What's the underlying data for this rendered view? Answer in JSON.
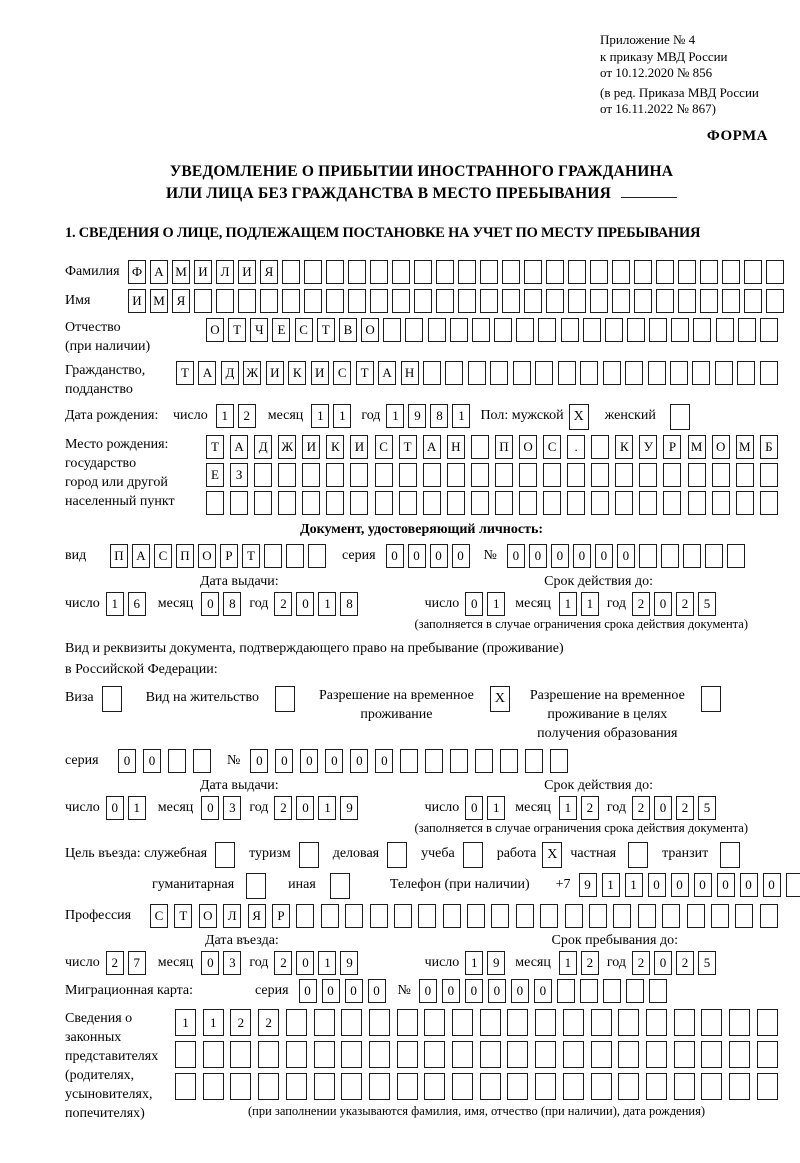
{
  "header": {
    "line1": "Приложение № 4",
    "line2": "к приказу МВД России",
    "line3": "от 10.12.2020 № 856",
    "line4": "(в ред. Приказа МВД России",
    "line5": "от 16.11.2022 № 867)",
    "forma": "ФОРМА"
  },
  "title": {
    "line1": "УВЕДОМЛЕНИЕ О ПРИБЫТИИ ИНОСТРАННОГО ГРАЖДАНИНА",
    "line2": "ИЛИ ЛИЦА БЕЗ ГРАЖДАНСТВА В МЕСТО ПРЕБЫВАНИЯ"
  },
  "section1": {
    "heading": "1. СВЕДЕНИЯ О ЛИЦЕ, ПОДЛЕЖАЩЕМ ПОСТАНОВКЕ НА УЧЕТ ПО МЕСТУ ПРЕБЫВАНИЯ"
  },
  "headings": {
    "identity_doc": "Документ, удостоверяющий личность:"
  },
  "notes": {
    "limit_note": "(заполняется в случае ограничения срока действия документа)",
    "fill_note": "(при заполнении указываются фамилия, имя, отчество (при наличии), дата рождения)"
  },
  "paragraphs": {
    "permit1": "Вид и реквизиты документа, подтверждающего право на пребывание (проживание)",
    "permit2": "в Российской Федерации:"
  },
  "rows": {
    "fam": [
      {
        "label": "Фамилия",
        "name": "surname-label",
        "w": 63
      },
      {
        "boxes": 30,
        "v": "ФАМИЛИЯ",
        "grow": true,
        "name": "surname-boxes"
      }
    ],
    "imya": [
      {
        "label": "Имя",
        "name": "given-name-label",
        "w": 63
      },
      {
        "boxes": 30,
        "v": "ИМЯ",
        "grow": true,
        "name": "given-name-boxes"
      }
    ],
    "otch": [
      {
        "stack": [
          "Отчество",
          "(при наличии)"
        ],
        "left": true,
        "w": 141,
        "name": "patronymic-label"
      },
      {
        "boxes": 26,
        "v": "ОТЧЕСТВО",
        "grow": true,
        "name": "patronymic-boxes"
      }
    ],
    "grazh": [
      {
        "stack": [
          "Гражданство,",
          "подданство"
        ],
        "left": true,
        "w": 111,
        "name": "citizenship-label"
      },
      {
        "boxes": 27,
        "v": "ТАДЖИКИСТАН",
        "grow": true,
        "name": "citizenship-boxes"
      }
    ],
    "dob": [
      {
        "label": "Дата рождения:",
        "name": "dob-label",
        "w": 104
      },
      {
        "label": "число",
        "name": "date-part-label",
        "ml": 4
      },
      {
        "boxes": 2,
        "v": "12",
        "ml": 8,
        "name": "dob-day-boxes"
      },
      {
        "label": "месяц",
        "name": "date-part-label",
        "ml": 12
      },
      {
        "boxes": 2,
        "v": "11",
        "ml": 8,
        "name": "dob-month-boxes"
      },
      {
        "label": "год",
        "name": "date-part-label",
        "ml": 10
      },
      {
        "boxes": 4,
        "v": "1981",
        "ml": 6,
        "name": "dob-year-boxes"
      },
      {
        "label": "Пол: мужской",
        "name": "gender-male-label",
        "ml": 10
      },
      {
        "boxes": 1,
        "v": "X",
        "cb": true,
        "ml": 5,
        "name": "gender-male-checkbox"
      },
      {
        "label": "женский",
        "name": "gender-female-label",
        "ml": 16
      },
      {
        "boxes": 1,
        "v": "",
        "cb": true,
        "ml": 14,
        "name": "gender-female-checkbox"
      }
    ],
    "birth_label": [
      {
        "stack": [
          "Место рождения:",
          "государство",
          "город или другой",
          "населенный пункт"
        ],
        "left": true,
        "w": 141,
        "name": "birthplace-label"
      }
    ],
    "birth1": [
      {
        "boxes": 24,
        "v": "ТАДЖИКИСТАН ПОС. КУРМОМБ",
        "grow": true,
        "name": "birthplace-line1-boxes"
      }
    ],
    "birth2": [
      {
        "boxes": 24,
        "v": "ЕЗ",
        "grow": true,
        "name": "birthplace-line2-boxes"
      }
    ],
    "birth3": [
      {
        "boxes": 24,
        "v": "",
        "grow": true,
        "name": "birthplace-line3-boxes"
      }
    ],
    "vid": [
      {
        "label": "вид",
        "name": "doc-type-label",
        "w": 45
      },
      {
        "boxes": 10,
        "v": "ПАСПОРТ",
        "name": "doc-type-boxes"
      },
      {
        "label": "серия",
        "name": "doc-series-label",
        "ml": 16
      },
      {
        "boxes": 4,
        "v": "0000",
        "ml": 10,
        "name": "doc-series-boxes"
      },
      {
        "label": "№",
        "name": "doc-number-label",
        "ml": 14
      },
      {
        "boxes": 11,
        "v": "000000",
        "ml": 10,
        "name": "doc-number-boxes"
      }
    ],
    "dates1_head": [
      {
        "label": "Дата выдачи:",
        "name": "issue-date-header",
        "ml": 135
      },
      {
        "flex": true
      },
      {
        "label": "Срок действия до:",
        "name": "validity-date-header",
        "mr": 125
      }
    ],
    "dates1": [
      {
        "label": "число",
        "name": "date-part-label"
      },
      {
        "boxes": 2,
        "v": "16",
        "ml": 6,
        "name": "doc-issue-day-boxes"
      },
      {
        "label": "месяц",
        "name": "date-part-label",
        "ml": 12
      },
      {
        "boxes": 2,
        "v": "08",
        "ml": 8,
        "name": "doc-issue-month-boxes"
      },
      {
        "label": "год",
        "name": "date-part-label",
        "ml": 8
      },
      {
        "boxes": 4,
        "v": "2018",
        "ml": 6,
        "name": "doc-issue-year-boxes"
      },
      {
        "flex": true
      },
      {
        "label": "число",
        "name": "date-part-label"
      },
      {
        "boxes": 2,
        "v": "01",
        "ml": 6,
        "name": "doc-valid-day-boxes"
      },
      {
        "label": "месяц",
        "name": "date-part-label",
        "ml": 10
      },
      {
        "boxes": 2,
        "v": "11",
        "ml": 8,
        "name": "doc-valid-month-boxes"
      },
      {
        "label": "год",
        "name": "date-part-label",
        "ml": 8
      },
      {
        "boxes": 4,
        "v": "2025",
        "ml": 6,
        "name": "doc-valid-year-boxes"
      },
      {
        "sp": 62
      }
    ],
    "perm": [
      {
        "label": "Виза",
        "name": "visa-label"
      },
      {
        "boxes": 1,
        "v": "",
        "cb": true,
        "ml": 8,
        "name": "visa-checkbox"
      },
      {
        "label": "Вид на жительство",
        "name": "residence-permit-label",
        "ml": 24
      },
      {
        "boxes": 1,
        "v": "",
        "cb": true,
        "ml": 16,
        "name": "residence-permit-checkbox"
      },
      {
        "stack": [
          "Разрешение на временное",
          "проживание"
        ],
        "name": "temp-residence-label",
        "ml": 24
      },
      {
        "boxes": 1,
        "v": "X",
        "cb": true,
        "ml": 16,
        "name": "temp-residence-checkbox"
      },
      {
        "stack": [
          "Разрешение на временное",
          "проживание в целях",
          "получения образования"
        ],
        "name": "temp-residence-edu-label",
        "ml": 20
      },
      {
        "boxes": 1,
        "v": "",
        "cb": true,
        "ml": 16,
        "name": "temp-residence-edu-checkbox"
      }
    ],
    "ser2": [
      {
        "label": "серия",
        "name": "permit-series-label",
        "w": 45
      },
      {
        "boxes": 4,
        "v": "00",
        "ml": 8,
        "gap": 7,
        "name": "permit-series-boxes"
      },
      {
        "label": "№",
        "name": "permit-number-label",
        "ml": 16
      },
      {
        "boxes": 13,
        "v": "000000",
        "ml": 10,
        "gap": 7,
        "name": "permit-number-boxes"
      }
    ],
    "dates2_head": [
      {
        "label": "Дата выдачи:",
        "name": "permit-issue-date-header",
        "ml": 135
      },
      {
        "flex": true
      },
      {
        "label": "Срок действия до:",
        "name": "permit-validity-date-header",
        "mr": 125
      }
    ],
    "dates2": [
      {
        "label": "число",
        "name": "date-part-label"
      },
      {
        "boxes": 2,
        "v": "01",
        "ml": 6,
        "name": "permit-issue-day-boxes"
      },
      {
        "label": "месяц",
        "name": "date-part-label",
        "ml": 12
      },
      {
        "boxes": 2,
        "v": "03",
        "ml": 8,
        "name": "permit-issue-month-boxes"
      },
      {
        "label": "год",
        "name": "date-part-label",
        "ml": 8
      },
      {
        "boxes": 4,
        "v": "2019",
        "ml": 6,
        "name": "permit-issue-year-boxes"
      },
      {
        "flex": true
      },
      {
        "label": "число",
        "name": "date-part-label"
      },
      {
        "boxes": 2,
        "v": "01",
        "ml": 6,
        "name": "permit-valid-day-boxes"
      },
      {
        "label": "месяц",
        "name": "date-part-label",
        "ml": 10
      },
      {
        "boxes": 2,
        "v": "12",
        "ml": 8,
        "name": "permit-valid-month-boxes"
      },
      {
        "label": "год",
        "name": "date-part-label",
        "ml": 8
      },
      {
        "boxes": 4,
        "v": "2025",
        "ml": 6,
        "name": "permit-valid-year-boxes"
      },
      {
        "sp": 62
      }
    ],
    "purpose": [
      {
        "label": "Цель въезда: служебная",
        "name": "purpose-official-label"
      },
      {
        "boxes": 1,
        "v": "",
        "cb": true,
        "ml": 8,
        "name": "purpose-official-checkbox"
      },
      {
        "label": "туризм",
        "name": "purpose-tourism-label",
        "ml": 14
      },
      {
        "boxes": 1,
        "v": "",
        "cb": true,
        "ml": 8,
        "name": "purpose-tourism-checkbox"
      },
      {
        "label": "деловая",
        "name": "purpose-business-label",
        "ml": 14
      },
      {
        "boxes": 1,
        "v": "",
        "cb": true,
        "ml": 8,
        "name": "purpose-business-checkbox"
      },
      {
        "label": "учеба",
        "name": "purpose-study-label",
        "ml": 14
      },
      {
        "boxes": 1,
        "v": "",
        "cb": true,
        "ml": 8,
        "name": "purpose-study-checkbox"
      },
      {
        "label": "работа",
        "name": "purpose-work-label",
        "ml": 14
      },
      {
        "boxes": 1,
        "v": "X",
        "cb": true,
        "ml": 6,
        "name": "purpose-work-checkbox"
      },
      {
        "label": "частная",
        "name": "purpose-private-label",
        "ml": 8
      },
      {
        "boxes": 1,
        "v": "",
        "cb": true,
        "ml": 12,
        "name": "purpose-private-checkbox"
      },
      {
        "label": "транзит",
        "name": "purpose-transit-label",
        "ml": 14
      },
      {
        "boxes": 1,
        "v": "",
        "cb": true,
        "ml": 12,
        "name": "purpose-transit-checkbox"
      }
    ],
    "purpose2": [
      {
        "label": "гуманитарная",
        "name": "purpose-humanitarian-label",
        "ml": 87
      },
      {
        "boxes": 1,
        "v": "",
        "cb": true,
        "ml": 12,
        "name": "purpose-humanitarian-checkbox"
      },
      {
        "label": "иная",
        "name": "purpose-other-label",
        "ml": 22
      },
      {
        "boxes": 1,
        "v": "",
        "cb": true,
        "ml": 14,
        "name": "purpose-other-checkbox"
      },
      {
        "label": "Телефон (при наличии)",
        "name": "phone-label",
        "ml": 40
      },
      {
        "label": "+7",
        "name": "phone-prefix",
        "ml": 26
      },
      {
        "boxes": 10,
        "v": "911000000",
        "ml": 8,
        "gap": 5,
        "name": "phone-boxes"
      }
    ],
    "prof": [
      {
        "label": "Профессия",
        "name": "profession-label",
        "w": 85
      },
      {
        "boxes": 26,
        "v": "СТОЛЯР",
        "grow": true,
        "name": "profession-boxes"
      }
    ],
    "dates3_head": [
      {
        "label": "Дата въезда:",
        "name": "entry-date-header",
        "ml": 140
      },
      {
        "flex": true
      },
      {
        "label": "Срок пребывания до:",
        "name": "stay-until-header",
        "mr": 100
      }
    ],
    "dates3": [
      {
        "label": "число",
        "name": "date-part-label"
      },
      {
        "boxes": 2,
        "v": "27",
        "ml": 6,
        "name": "entry-day-boxes"
      },
      {
        "label": "месяц",
        "name": "date-part-label",
        "ml": 12
      },
      {
        "boxes": 2,
        "v": "03",
        "ml": 8,
        "name": "entry-month-boxes"
      },
      {
        "label": "год",
        "name": "date-part-label",
        "ml": 8
      },
      {
        "boxes": 4,
        "v": "2019",
        "ml": 6,
        "name": "entry-year-boxes"
      },
      {
        "flex": true
      },
      {
        "label": "число",
        "name": "date-part-label"
      },
      {
        "boxes": 2,
        "v": "19",
        "ml": 6,
        "name": "stay-day-boxes"
      },
      {
        "label": "месяц",
        "name": "date-part-label",
        "ml": 10
      },
      {
        "boxes": 2,
        "v": "12",
        "ml": 8,
        "name": "stay-month-boxes"
      },
      {
        "label": "год",
        "name": "date-part-label",
        "ml": 8
      },
      {
        "boxes": 4,
        "v": "2025",
        "ml": 6,
        "name": "stay-year-boxes"
      },
      {
        "sp": 62
      }
    ],
    "migr": [
      {
        "label": "Миграционная карта:",
        "name": "migration-card-label",
        "w": 160
      },
      {
        "label": "серия",
        "name": "migration-series-label",
        "ml": 30
      },
      {
        "boxes": 4,
        "v": "0000",
        "ml": 10,
        "gap": 5,
        "name": "migration-series-boxes"
      },
      {
        "label": "№",
        "name": "migration-number-label",
        "ml": 12
      },
      {
        "boxes": 11,
        "v": "000000",
        "ml": 8,
        "gap": 5,
        "name": "migration-number-boxes"
      }
    ],
    "sved_label": [
      {
        "stack": [
          "Сведения о",
          "законных",
          "представителях",
          "(родителях,",
          "усыновителях,",
          "попечителях)"
        ],
        "left": true,
        "w": 110,
        "name": "legal-representatives-label"
      }
    ],
    "sved1": [
      {
        "boxes": 22,
        "v": "1122",
        "grow": true,
        "big": true,
        "name": "representatives-line1-boxes"
      }
    ],
    "sved2": [
      {
        "boxes": 22,
        "v": "",
        "grow": true,
        "big": true,
        "name": "representatives-line2-boxes"
      }
    ],
    "sved3": [
      {
        "boxes": 22,
        "v": "",
        "grow": true,
        "big": true,
        "name": "representatives-line3-boxes"
      }
    ]
  }
}
